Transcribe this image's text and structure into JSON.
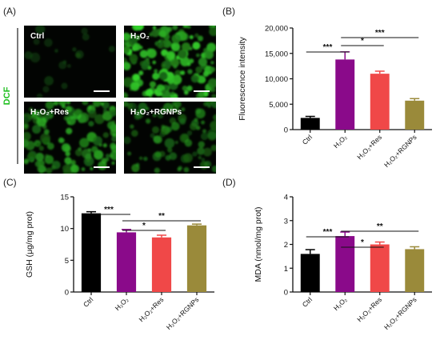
{
  "panels": {
    "a": "(A)",
    "b": "(B)",
    "c": "(C)",
    "d": "(D)"
  },
  "micrographs": {
    "side_label": "DCF",
    "images": [
      {
        "label": "Ctrl",
        "brightness": 0.05
      },
      {
        "label": "H₂O₂",
        "brightness": 0.85
      },
      {
        "label": "H₂O₂+Res",
        "brightness": 0.65
      },
      {
        "label": "H₂O₂+RGNPs",
        "brightness": 0.45
      }
    ]
  },
  "colors": {
    "Ctrl": "#000000",
    "H2O2": "#8a0a8a",
    "Res": "#f04848",
    "RGNPs": "#9a8a3a",
    "green": "#3ad03a"
  },
  "chart_data": [
    {
      "type": "bar",
      "panel": "B",
      "ylabel": "Fluorescence intensity",
      "categories": [
        "Ctrl",
        "H₂O₂",
        "H₂O₂+Res",
        "H₂O₂+RGNPs"
      ],
      "values": [
        2300,
        13800,
        11000,
        5700
      ],
      "errors": [
        300,
        1500,
        500,
        400
      ],
      "ylim": [
        0,
        20000
      ],
      "yticks": [
        "0",
        "5,000",
        "10,000",
        "15,000",
        "20,000"
      ],
      "significance": [
        {
          "from": 0,
          "to": 1,
          "label": "***"
        },
        {
          "from": 1,
          "to": 2,
          "label": "*"
        },
        {
          "from": 1,
          "to": 3,
          "label": "***"
        }
      ]
    },
    {
      "type": "bar",
      "panel": "C",
      "ylabel": "GSH (μg/mg prot)",
      "categories": [
        "Ctrl",
        "H₂O₂",
        "H₂O₂+Res",
        "H₂O₂+RGNPs"
      ],
      "values": [
        12.4,
        9.4,
        8.6,
        10.5
      ],
      "errors": [
        0.25,
        0.45,
        0.35,
        0.2
      ],
      "ylim": [
        0,
        15
      ],
      "yticks": [
        "0",
        "5",
        "10",
        "15"
      ],
      "significance": [
        {
          "from": 0,
          "to": 1,
          "label": "***"
        },
        {
          "from": 1,
          "to": 2,
          "label": "*"
        },
        {
          "from": 1,
          "to": 3,
          "label": "**"
        }
      ]
    },
    {
      "type": "bar",
      "panel": "D",
      "ylabel": "MDA (nmol/mg prot)",
      "categories": [
        "Ctrl",
        "H₂O₂",
        "H₂O₂+Res",
        "H₂O₂+RGNPs"
      ],
      "values": [
        1.6,
        2.35,
        2.0,
        1.8
      ],
      "errors": [
        0.18,
        0.17,
        0.1,
        0.1
      ],
      "ylim": [
        0,
        4
      ],
      "yticks": [
        "0",
        "1",
        "2",
        "3",
        "4"
      ],
      "significance": [
        {
          "from": 0,
          "to": 1,
          "label": "***"
        },
        {
          "from": 1,
          "to": 2,
          "label": "*"
        },
        {
          "from": 1,
          "to": 3,
          "label": "**"
        }
      ]
    }
  ]
}
